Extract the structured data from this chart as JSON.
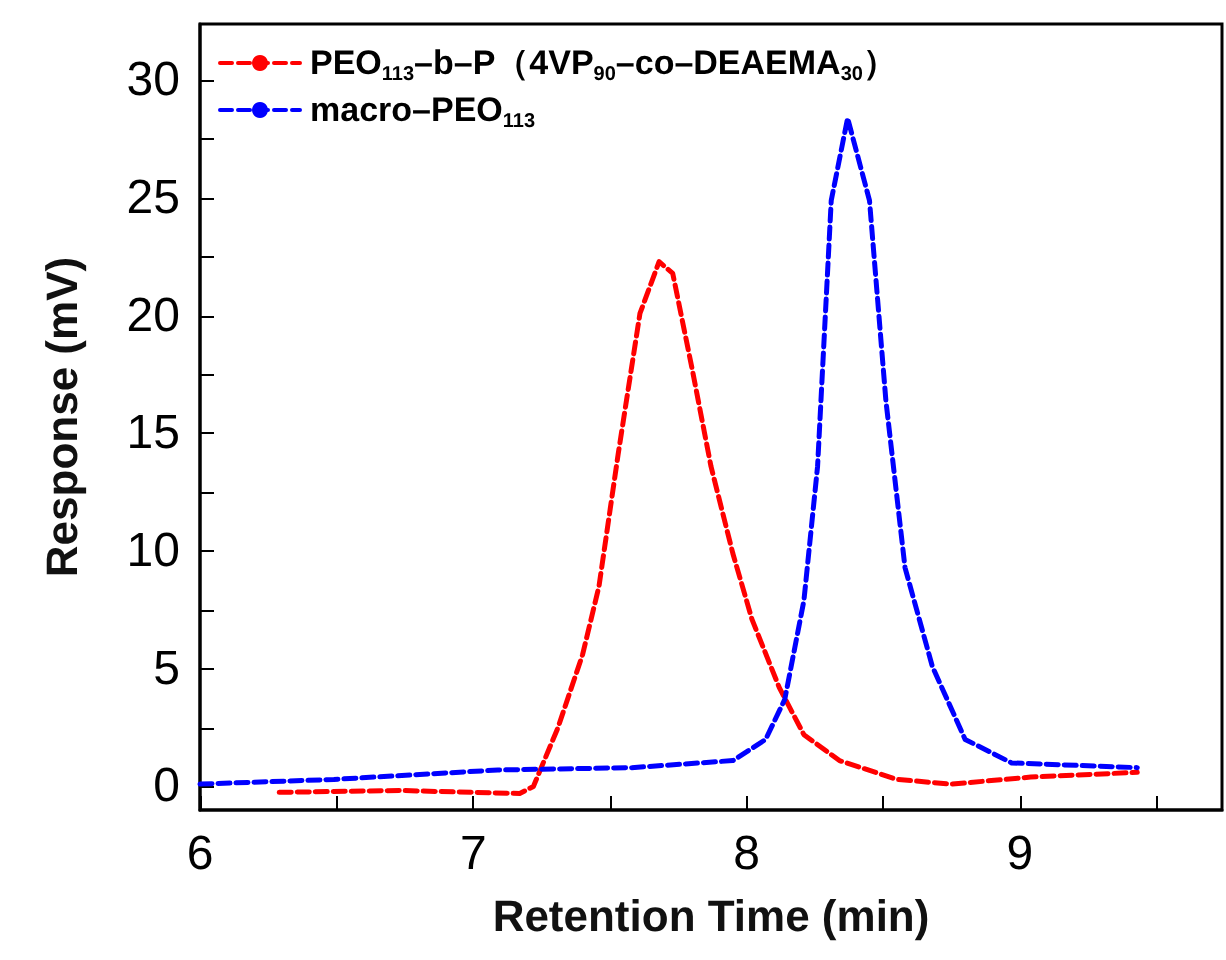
{
  "chart_data": {
    "type": "line",
    "xlabel": "Retention Time (min)",
    "ylabel": "Response (mV)",
    "xlim": [
      6,
      9.74
    ],
    "ylim": [
      -1,
      32.4
    ],
    "xticks": [
      6,
      {
        "value": 6.5,
        "label": null
      },
      7,
      {
        "value": 7.5,
        "label": null
      },
      8,
      {
        "value": 8.5,
        "label": null
      },
      9,
      {
        "value": 9.5,
        "label": null
      }
    ],
    "yticks": [
      0,
      {
        "value": 2.5,
        "label": null
      },
      5,
      {
        "value": 7.5,
        "label": null
      },
      10,
      {
        "value": 12.5,
        "label": null
      },
      15,
      {
        "value": 17.5,
        "label": null
      },
      20,
      {
        "value": 22.5,
        "label": null
      },
      25,
      {
        "value": 27.5,
        "label": null
      },
      30
    ],
    "grid": false,
    "legend": "top left",
    "line_style": "dashed",
    "marker": "none",
    "series": [
      {
        "name": "PEO$_{113}$–b–P（4VP$_{90}$–co–DEAEMA$_{30}$）",
        "color": "#ff0000",
        "x": [
          6.29,
          6.73,
          7.17,
          7.22,
          7.31,
          7.4,
          7.46,
          7.53,
          7.61,
          7.68,
          7.73,
          7.8,
          7.87,
          7.95,
          8.02,
          8.12,
          8.21,
          8.34,
          8.55,
          8.75,
          9.04,
          9.43
        ],
        "values": [
          -0.25,
          -0.17,
          -0.3,
          0,
          2.5,
          5.6,
          8.5,
          14.1,
          20.1,
          22.3,
          21.8,
          17.8,
          13.6,
          9.9,
          7.1,
          4.2,
          2.2,
          1.1,
          0.3,
          0.1,
          0.4,
          0.6
        ]
      },
      {
        "name": "macro–PEO$_{113}$",
        "color": "#0000ff",
        "x": [
          6,
          6.49,
          7.09,
          7.58,
          7.95,
          8.07,
          8.14,
          8.21,
          8.26,
          8.31,
          8.37,
          8.45,
          8.51,
          8.58,
          8.68,
          8.8,
          8.97,
          9.43
        ],
        "values": [
          0.1,
          0.3,
          0.7,
          0.8,
          1.1,
          2,
          3.7,
          7.9,
          13.6,
          24.9,
          28.4,
          24.9,
          16.4,
          9.3,
          5.1,
          2,
          1,
          0.8
        ]
      }
    ]
  }
}
